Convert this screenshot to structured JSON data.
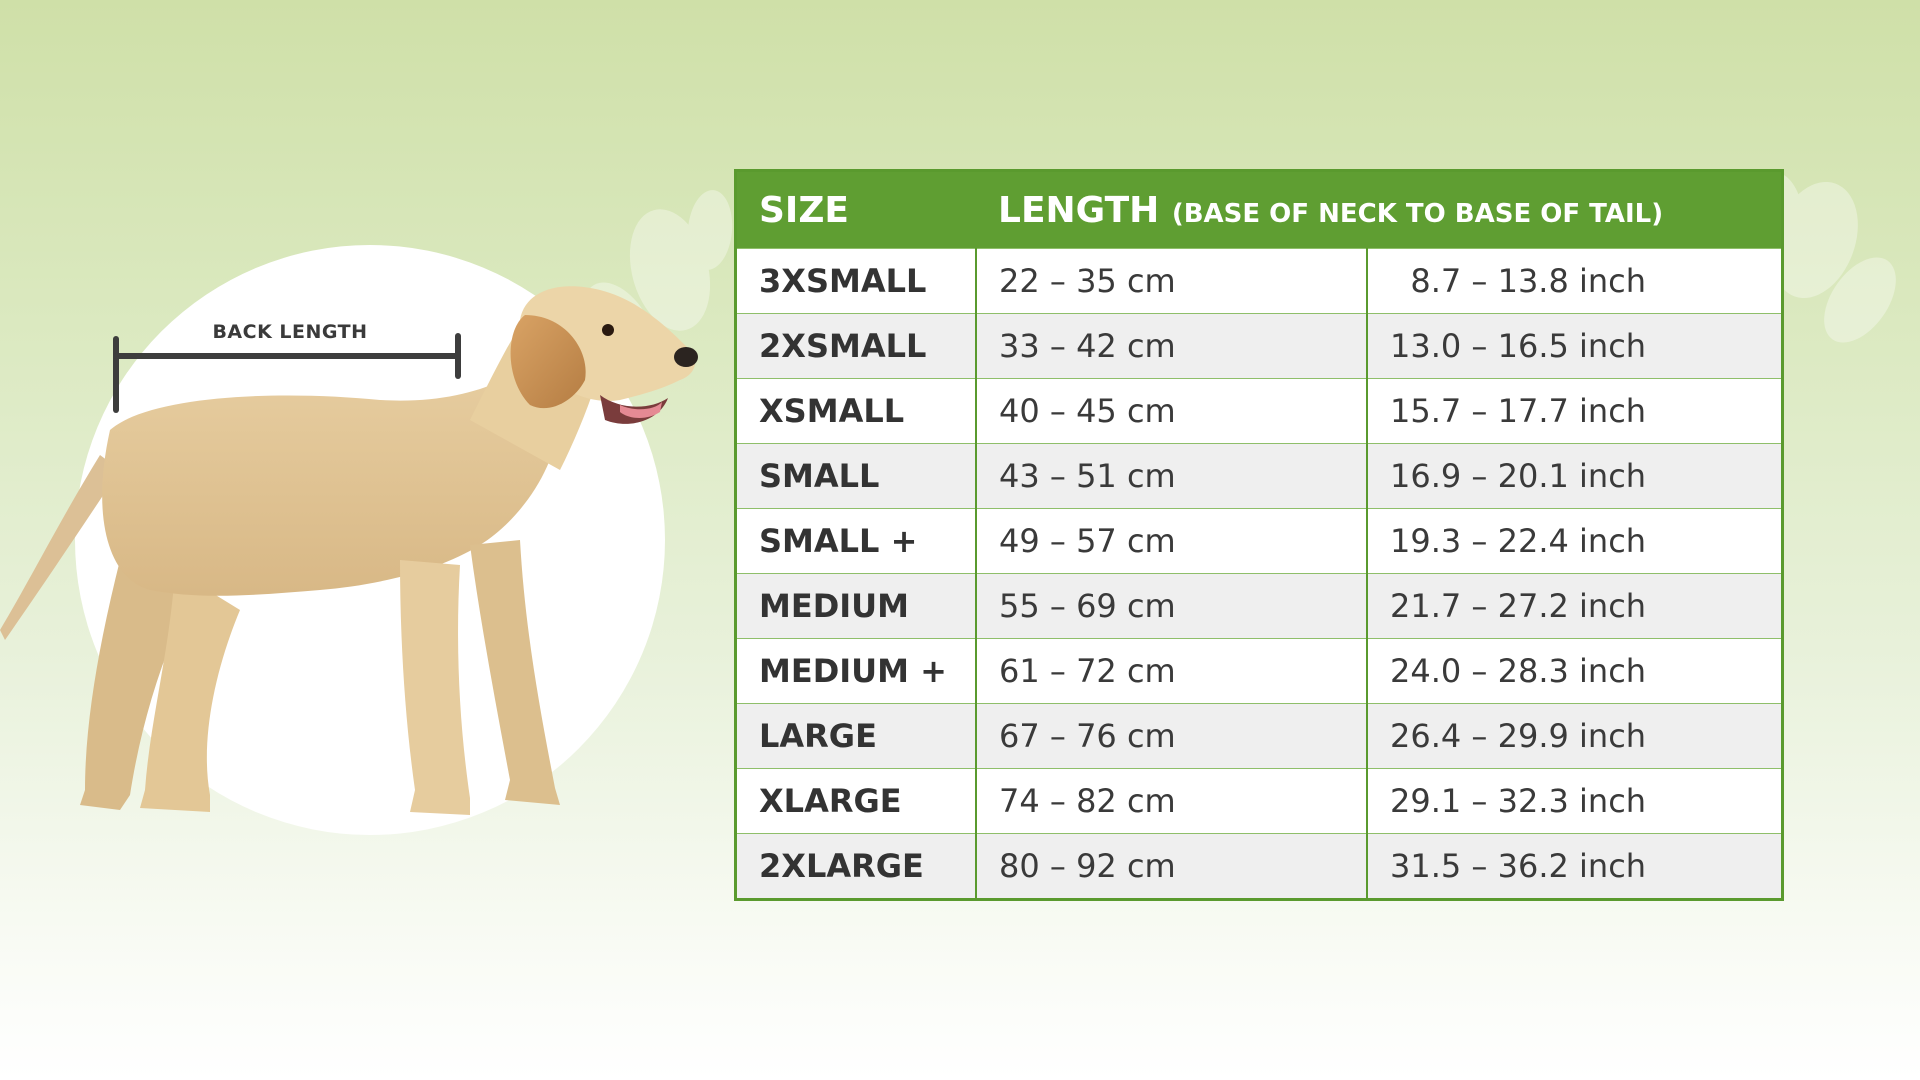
{
  "colors": {
    "header_green": "#5f9e32",
    "border_green": "#5a9a2e",
    "text_dark": "#3a3a3a",
    "row_alt": "#efefef",
    "background_top": "#cfe0a8"
  },
  "illustration": {
    "subject": "yellow labrador puppy standing in profile",
    "measure_label": "BACK LENGTH"
  },
  "table": {
    "header_size": "SIZE",
    "header_length": "LENGTH",
    "header_length_note": "(BASE OF NECK TO BASE OF TAIL)",
    "rows": [
      {
        "size": "3XSMALL",
        "cm": "22 – 35 cm",
        "inch": "  8.7 – 13.8 inch"
      },
      {
        "size": "2XSMALL",
        "cm": "33 – 42 cm",
        "inch": "13.0 – 16.5 inch"
      },
      {
        "size": "XSMALL",
        "cm": "40 – 45 cm",
        "inch": "15.7 – 17.7 inch"
      },
      {
        "size": "SMALL",
        "cm": "43 – 51 cm",
        "inch": "16.9 – 20.1 inch"
      },
      {
        "size": "SMALL +",
        "cm": "49 – 57 cm",
        "inch": "19.3 – 22.4 inch"
      },
      {
        "size": "MEDIUM",
        "cm": "55 – 69 cm",
        "inch": "21.7 – 27.2 inch"
      },
      {
        "size": "MEDIUM +",
        "cm": "61 – 72 cm",
        "inch": "24.0 – 28.3 inch"
      },
      {
        "size": "LARGE",
        "cm": "67 – 76 cm",
        "inch": "26.4 – 29.9 inch"
      },
      {
        "size": "XLARGE",
        "cm": "74 – 82 cm",
        "inch": "29.1 – 32.3 inch"
      },
      {
        "size": "2XLARGE",
        "cm": "80 – 92 cm",
        "inch": "31.5 – 36.2 inch"
      }
    ]
  }
}
